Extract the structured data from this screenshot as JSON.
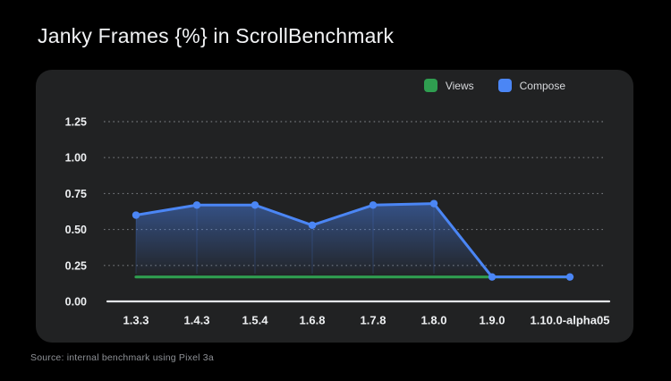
{
  "page": {
    "title": "Janky Frames {%} in ScrollBenchmark",
    "source_note": "Source: internal benchmark using Pixel 3a"
  },
  "colors": {
    "background": "#000000",
    "card": "#212223",
    "views_green": "#2f9e50",
    "compose_blue": "#4b86f5",
    "axis_line": "#e3e5e8",
    "gridline": "#74777b",
    "tick_label": "#eef0f2",
    "legend_text": "#d7d9dc",
    "source_text": "#8e9196"
  },
  "legend": [
    {
      "label": "Views",
      "color": "#2f9e50"
    },
    {
      "label": "Compose",
      "color": "#4b86f5"
    }
  ],
  "chart_data": {
    "type": "line",
    "title": "Janky Frames {%} in ScrollBenchmark",
    "categories": [
      "1.3.3",
      "1.4.3",
      "1.5.4",
      "1.6.8",
      "1.7.8",
      "1.8.0",
      "1.9.0",
      "1.10.0-alpha05"
    ],
    "series": [
      {
        "name": "Views",
        "color": "#2f9e50",
        "style": "plain-line",
        "values": [
          0.17,
          0.17,
          0.17,
          0.17,
          0.17,
          0.17,
          0.17,
          0.17
        ]
      },
      {
        "name": "Compose",
        "color": "#4b86f5",
        "style": "markers-area",
        "values": [
          0.6,
          0.67,
          0.67,
          0.53,
          0.67,
          0.68,
          0.17,
          0.17
        ]
      }
    ],
    "xlabel": "",
    "ylabel": "",
    "ylim": [
      0,
      1.25
    ],
    "yticks": [
      0,
      0.25,
      0.5,
      0.75,
      1.0,
      1.25
    ],
    "grid": "dotted-horizontal",
    "legend_position": "top-right"
  }
}
